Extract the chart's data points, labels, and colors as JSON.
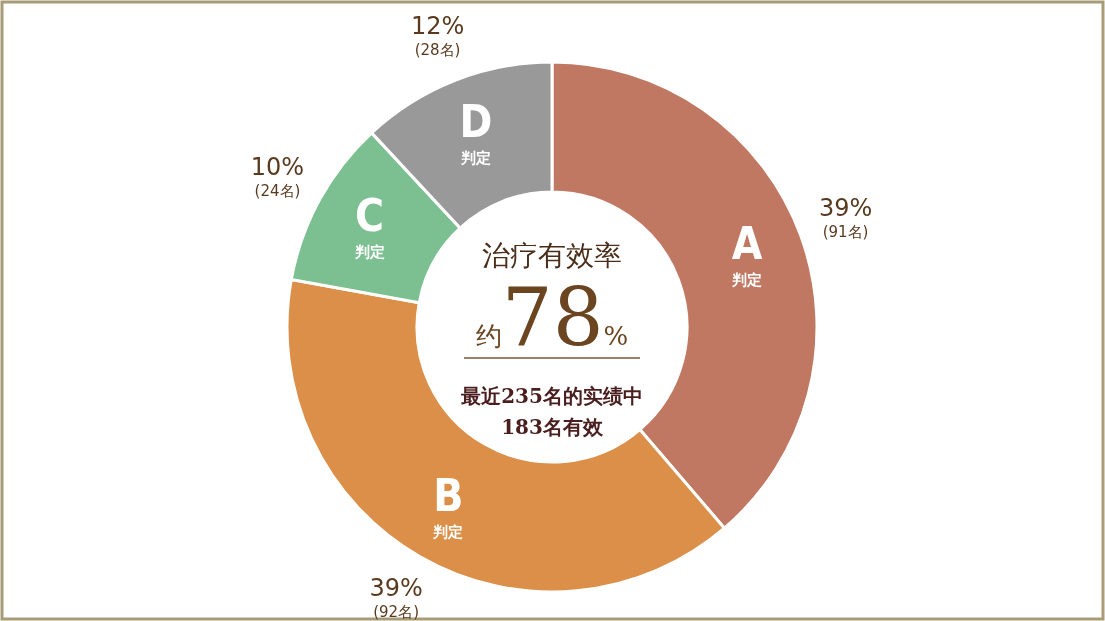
{
  "chart_data": {
    "type": "donut",
    "title": "治疗有效率",
    "subtitle": "约78%",
    "categories": [
      "A\n判定",
      "B\n判定",
      "C\n判定",
      "D\n判定"
    ],
    "values": [
      91,
      92,
      24,
      28
    ],
    "value_labels": [
      "39%\n(91名)",
      "39%\n(92名)",
      "10%\n(24名)",
      "12%\n(28名)"
    ],
    "colors": [
      "#c07862",
      "#db8f48",
      "#7cbf90",
      "#999999"
    ],
    "annotations": [
      "最近235名的实绩中",
      "183名有效"
    ]
  }
}
